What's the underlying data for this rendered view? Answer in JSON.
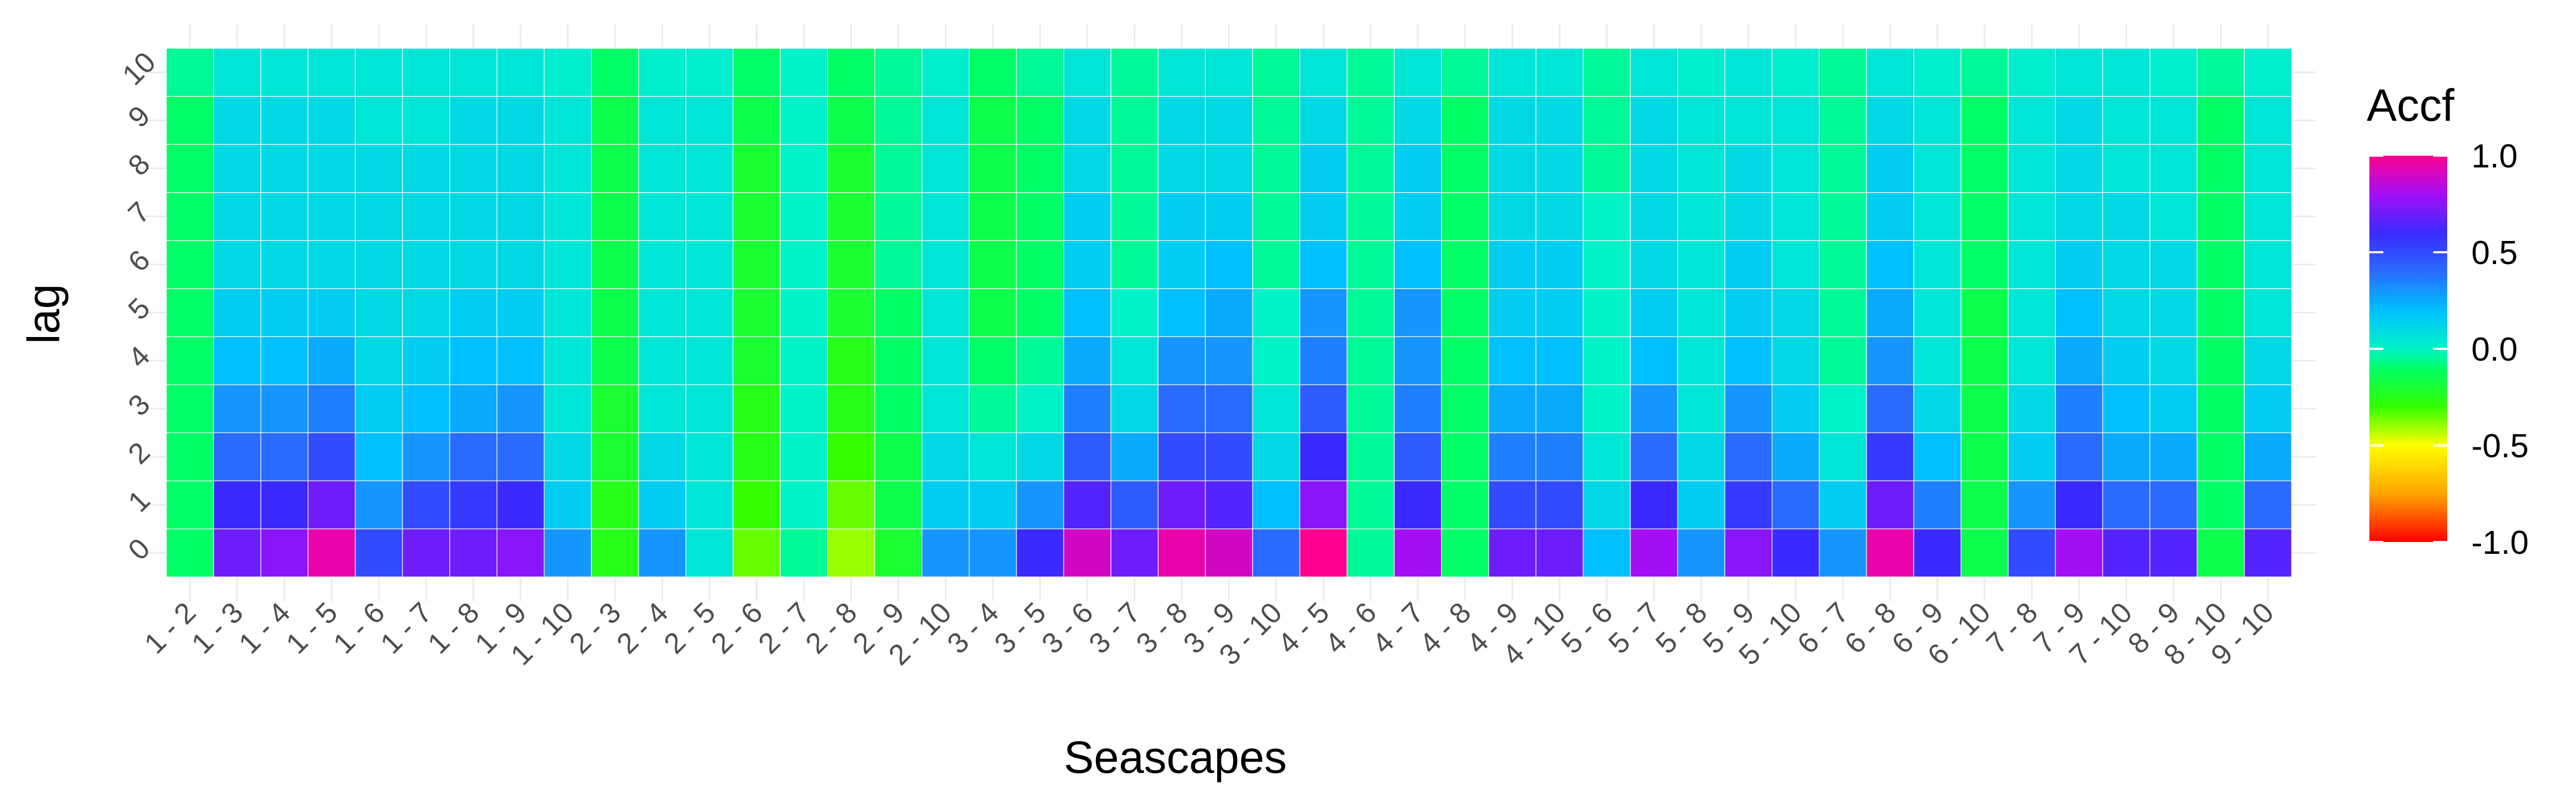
{
  "chart_data": {
    "type": "heatmap",
    "title": "",
    "xlabel": "Seascapes",
    "ylabel": "lag",
    "x_categories": [
      "1 - 2",
      "1 - 3",
      "1 - 4",
      "1 - 5",
      "1 - 6",
      "1 - 7",
      "1 - 8",
      "1 - 9",
      "1 - 10",
      "2 - 3",
      "2 - 4",
      "2 - 5",
      "2 - 6",
      "2 - 7",
      "2 - 8",
      "2 - 9",
      "2 - 10",
      "3 - 4",
      "3 - 5",
      "3 - 6",
      "3 - 7",
      "3 - 8",
      "3 - 9",
      "3 - 10",
      "4 - 5",
      "4 - 6",
      "4 - 7",
      "4 - 8",
      "4 - 9",
      "4 - 10",
      "5 - 6",
      "5 - 7",
      "5 - 8",
      "5 - 9",
      "5 - 10",
      "6 - 7",
      "6 - 8",
      "6 - 9",
      "6 - 10",
      "7 - 8",
      "7 - 9",
      "7 - 10",
      "8 - 9",
      "8 - 10",
      "9 - 10"
    ],
    "y_categories": [
      "0",
      "1",
      "2",
      "3",
      "4",
      "5",
      "6",
      "7",
      "8",
      "9",
      "10"
    ],
    "values": [
      [
        -0.1,
        -0.1,
        -0.1,
        -0.1,
        -0.1,
        -0.1,
        -0.1,
        -0.1,
        -0.1,
        -0.1,
        -0.05
      ],
      [
        0.7,
        0.6,
        0.4,
        0.3,
        0.2,
        0.15,
        0.1,
        0.1,
        0.1,
        0.1,
        0.05
      ],
      [
        0.75,
        0.6,
        0.4,
        0.3,
        0.2,
        0.15,
        0.1,
        0.1,
        0.1,
        0.1,
        0.05
      ],
      [
        0.95,
        0.7,
        0.5,
        0.35,
        0.25,
        0.15,
        0.1,
        0.1,
        0.1,
        0.1,
        0.05
      ],
      [
        0.5,
        0.3,
        0.2,
        0.15,
        0.1,
        0.1,
        0.1,
        0.1,
        0.1,
        0.05,
        0.05
      ],
      [
        0.7,
        0.5,
        0.3,
        0.2,
        0.15,
        0.1,
        0.1,
        0.1,
        0.1,
        0.05,
        0.05
      ],
      [
        0.7,
        0.55,
        0.4,
        0.25,
        0.2,
        0.15,
        0.1,
        0.1,
        0.1,
        0.1,
        0.05
      ],
      [
        0.75,
        0.6,
        0.4,
        0.3,
        0.2,
        0.15,
        0.1,
        0.1,
        0.1,
        0.1,
        0.05
      ],
      [
        0.3,
        0.15,
        0.1,
        0.05,
        0.05,
        0.05,
        0.05,
        0.05,
        0.05,
        0.05,
        0.02
      ],
      [
        -0.25,
        -0.25,
        -0.2,
        -0.2,
        -0.15,
        -0.15,
        -0.15,
        -0.15,
        -0.15,
        -0.15,
        -0.1
      ],
      [
        0.3,
        0.15,
        0.1,
        0.05,
        0.05,
        0.05,
        0.05,
        0.05,
        0.05,
        0.05,
        0.02
      ],
      [
        0.05,
        0.05,
        0.05,
        0.05,
        0.05,
        0.05,
        0.05,
        0.05,
        0.05,
        0.05,
        0.02
      ],
      [
        -0.35,
        -0.3,
        -0.25,
        -0.25,
        -0.2,
        -0.2,
        -0.2,
        -0.2,
        -0.2,
        -0.15,
        -0.1
      ],
      [
        -0.05,
        0.0,
        0.0,
        0.0,
        0.0,
        0.0,
        0.0,
        0.0,
        0.0,
        0.0,
        0.0
      ],
      [
        -0.4,
        -0.35,
        -0.3,
        -0.25,
        -0.25,
        -0.2,
        -0.2,
        -0.2,
        -0.2,
        -0.15,
        -0.1
      ],
      [
        -0.2,
        -0.15,
        -0.15,
        -0.1,
        -0.1,
        -0.1,
        -0.05,
        -0.05,
        -0.05,
        -0.05,
        -0.05
      ],
      [
        0.3,
        0.15,
        0.1,
        0.05,
        0.05,
        0.05,
        0.05,
        0.05,
        0.05,
        0.05,
        0.02
      ],
      [
        0.3,
        0.15,
        0.05,
        -0.05,
        -0.1,
        -0.15,
        -0.15,
        -0.15,
        -0.15,
        -0.15,
        -0.1
      ],
      [
        0.6,
        0.3,
        0.1,
        0.0,
        -0.05,
        -0.1,
        -0.1,
        -0.1,
        -0.1,
        -0.1,
        -0.05
      ],
      [
        0.9,
        0.65,
        0.45,
        0.35,
        0.25,
        0.2,
        0.15,
        0.15,
        0.1,
        0.1,
        0.05
      ],
      [
        0.7,
        0.45,
        0.25,
        0.1,
        0.05,
        0.0,
        -0.05,
        -0.05,
        -0.05,
        -0.05,
        -0.05
      ],
      [
        0.95,
        0.7,
        0.5,
        0.4,
        0.3,
        0.2,
        0.15,
        0.15,
        0.1,
        0.1,
        0.05
      ],
      [
        0.9,
        0.65,
        0.5,
        0.4,
        0.3,
        0.25,
        0.2,
        0.15,
        0.1,
        0.1,
        0.05
      ],
      [
        0.4,
        0.2,
        0.1,
        0.05,
        0.0,
        0.0,
        -0.05,
        -0.05,
        -0.05,
        -0.05,
        -0.05
      ],
      [
        1.0,
        0.75,
        0.6,
        0.45,
        0.35,
        0.3,
        0.2,
        0.15,
        0.15,
        0.1,
        0.05
      ],
      [
        -0.05,
        -0.05,
        -0.05,
        -0.05,
        -0.05,
        -0.05,
        -0.05,
        -0.05,
        -0.05,
        -0.05,
        -0.05
      ],
      [
        0.8,
        0.6,
        0.45,
        0.35,
        0.3,
        0.3,
        0.2,
        0.15,
        0.15,
        0.1,
        0.05
      ],
      [
        -0.1,
        -0.1,
        -0.1,
        -0.1,
        -0.1,
        -0.1,
        -0.1,
        -0.1,
        -0.1,
        -0.1,
        -0.05
      ],
      [
        0.7,
        0.5,
        0.35,
        0.25,
        0.2,
        0.15,
        0.15,
        0.1,
        0.1,
        0.1,
        0.05
      ],
      [
        0.7,
        0.5,
        0.35,
        0.25,
        0.2,
        0.15,
        0.15,
        0.1,
        0.1,
        0.1,
        0.05
      ],
      [
        0.2,
        0.1,
        0.05,
        0.0,
        0.0,
        0.0,
        0.0,
        0.0,
        -0.05,
        -0.05,
        -0.05
      ],
      [
        0.8,
        0.6,
        0.4,
        0.3,
        0.2,
        0.15,
        0.1,
        0.1,
        0.1,
        0.1,
        0.05
      ],
      [
        0.3,
        0.15,
        0.1,
        0.05,
        0.05,
        0.05,
        0.05,
        0.05,
        0.05,
        0.05,
        0.02
      ],
      [
        0.75,
        0.55,
        0.4,
        0.3,
        0.2,
        0.15,
        0.15,
        0.1,
        0.1,
        0.05,
        0.05
      ],
      [
        0.6,
        0.4,
        0.25,
        0.15,
        0.1,
        0.1,
        0.05,
        0.05,
        0.05,
        0.05,
        0.02
      ],
      [
        0.3,
        0.15,
        0.05,
        0.0,
        -0.05,
        -0.05,
        -0.05,
        -0.05,
        -0.05,
        -0.05,
        -0.05
      ],
      [
        0.95,
        0.7,
        0.55,
        0.4,
        0.3,
        0.25,
        0.2,
        0.15,
        0.15,
        0.1,
        0.05
      ],
      [
        0.6,
        0.35,
        0.2,
        0.1,
        0.05,
        0.05,
        0.05,
        0.05,
        0.05,
        0.05,
        0.02
      ],
      [
        -0.15,
        -0.15,
        -0.15,
        -0.15,
        -0.15,
        -0.15,
        -0.1,
        -0.1,
        -0.1,
        -0.1,
        -0.05
      ],
      [
        0.5,
        0.3,
        0.15,
        0.1,
        0.05,
        0.05,
        0.05,
        0.05,
        0.05,
        0.05,
        0.02
      ],
      [
        0.8,
        0.6,
        0.4,
        0.35,
        0.25,
        0.2,
        0.15,
        0.1,
        0.1,
        0.1,
        0.05
      ],
      [
        0.65,
        0.4,
        0.25,
        0.2,
        0.15,
        0.1,
        0.1,
        0.1,
        0.05,
        0.05,
        0.05
      ],
      [
        0.65,
        0.4,
        0.25,
        0.15,
        0.1,
        0.1,
        0.1,
        0.05,
        0.05,
        0.05,
        0.02
      ],
      [
        -0.15,
        -0.1,
        -0.1,
        -0.1,
        -0.1,
        -0.1,
        -0.1,
        -0.1,
        -0.1,
        -0.1,
        -0.05
      ],
      [
        0.65,
        0.4,
        0.25,
        0.15,
        0.1,
        0.05,
        0.05,
        0.05,
        0.05,
        0.05,
        0.02
      ]
    ],
    "value_range": [
      -1,
      1
    ],
    "grid": true,
    "legend": {
      "title": "Accf",
      "position": "right",
      "ticks": [
        "1.0",
        "0.5",
        "0.0",
        "-0.5",
        "-1.0"
      ],
      "tick_values": [
        1.0,
        0.5,
        0.0,
        -0.5,
        -1.0
      ]
    },
    "colormap": [
      {
        "v": -1.0,
        "color": "#ff0000"
      },
      {
        "v": -0.75,
        "color": "#ffa500"
      },
      {
        "v": -0.5,
        "color": "#ffff00"
      },
      {
        "v": -0.3,
        "color": "#33ff00"
      },
      {
        "v": -0.1,
        "color": "#00ff66"
      },
      {
        "v": 0.0,
        "color": "#00f2c8"
      },
      {
        "v": 0.2,
        "color": "#00c0ff"
      },
      {
        "v": 0.4,
        "color": "#2a6bff"
      },
      {
        "v": 0.6,
        "color": "#3a2aff"
      },
      {
        "v": 0.8,
        "color": "#a40ef5"
      },
      {
        "v": 1.0,
        "color": "#ff0090"
      }
    ]
  }
}
